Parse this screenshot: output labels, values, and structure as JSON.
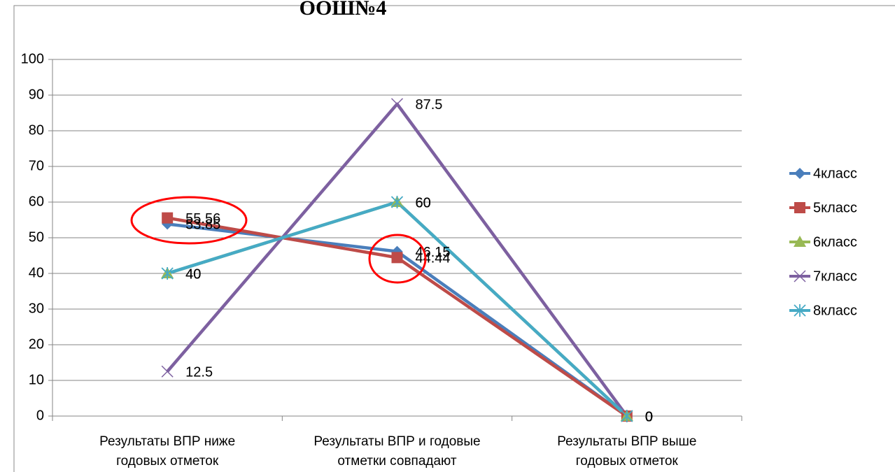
{
  "chart_data": {
    "type": "line",
    "title": "ООШ№4",
    "categories": [
      "Результаты ВПР ниже\nгодовых отметок",
      "Результаты ВПР и годовые\nотметки совпадают",
      "Результаты ВПР выше\nгодовых отметок"
    ],
    "series": [
      {
        "name": "4класс",
        "color": "#4a7ebb",
        "marker": "diamond",
        "values": [
          53.85,
          46.15,
          0
        ]
      },
      {
        "name": "5класс",
        "color": "#be4b48",
        "marker": "square",
        "values": [
          55.56,
          44.44,
          0
        ]
      },
      {
        "name": "6класс",
        "color": "#98b954",
        "marker": "triangle",
        "values": [
          40,
          60,
          0
        ]
      },
      {
        "name": "7класс",
        "color": "#7d60a0",
        "marker": "x",
        "values": [
          12.5,
          87.5,
          0
        ]
      },
      {
        "name": "8класс",
        "color": "#46aac5",
        "marker": "star",
        "values": [
          40,
          60,
          0
        ]
      }
    ],
    "ylim": [
      0,
      100
    ],
    "yticks": [
      0,
      10,
      20,
      30,
      40,
      50,
      60,
      70,
      80,
      90,
      100
    ],
    "grid": true,
    "legend": "right"
  }
}
